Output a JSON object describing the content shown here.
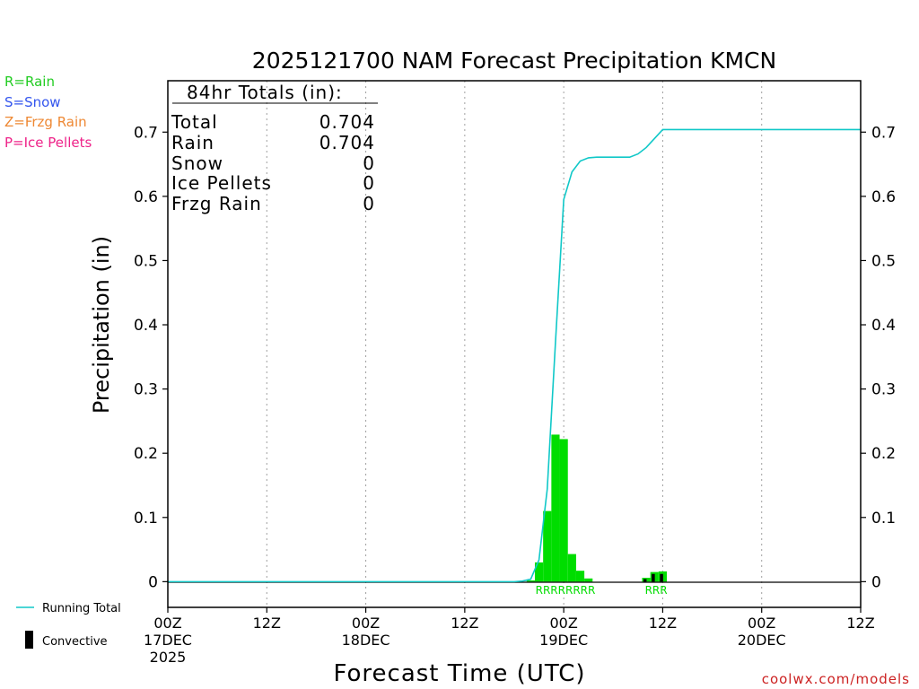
{
  "chart_data": {
    "type": "bar",
    "title": "2025121700 NAM Forecast Precipitation KMCN",
    "xlabel": "Forecast Time (UTC)",
    "ylabel": "Precipitation (in)",
    "ylim": [
      -0.04,
      0.78
    ],
    "xlim_hours": [
      0,
      84
    ],
    "y_ticks": [
      "0",
      "0.1",
      "0.2",
      "0.3",
      "0.4",
      "0.5",
      "0.6",
      "0.7"
    ],
    "y_tick_values": [
      0,
      0.1,
      0.2,
      0.3,
      0.4,
      0.5,
      0.6,
      0.7
    ],
    "x_ticks": [
      {
        "hour": 0,
        "label": "00Z",
        "sub": "17DEC",
        "sub2": "2025"
      },
      {
        "hour": 12,
        "label": "12Z",
        "sub": "",
        "sub2": ""
      },
      {
        "hour": 24,
        "label": "00Z",
        "sub": "18DEC",
        "sub2": ""
      },
      {
        "hour": 36,
        "label": "12Z",
        "sub": "",
        "sub2": ""
      },
      {
        "hour": 48,
        "label": "00Z",
        "sub": "19DEC",
        "sub2": ""
      },
      {
        "hour": 60,
        "label": "12Z",
        "sub": "",
        "sub2": ""
      },
      {
        "hour": 72,
        "label": "00Z",
        "sub": "20DEC",
        "sub2": ""
      },
      {
        "hour": 84,
        "label": "12Z",
        "sub": "",
        "sub2": ""
      }
    ],
    "grid": "vertical dotted",
    "bars": [
      {
        "hour": 44,
        "value": 0.002,
        "conv": 0
      },
      {
        "hour": 45,
        "value": 0.03,
        "conv": 0
      },
      {
        "hour": 46,
        "value": 0.11,
        "conv": 0
      },
      {
        "hour": 47,
        "value": 0.229,
        "conv": 0
      },
      {
        "hour": 48,
        "value": 0.222,
        "conv": 0
      },
      {
        "hour": 49,
        "value": 0.043,
        "conv": 0
      },
      {
        "hour": 50,
        "value": 0.017,
        "conv": 0
      },
      {
        "hour": 51,
        "value": 0.005,
        "conv": 0
      },
      {
        "hour": 58,
        "value": 0.006,
        "conv": 0.004
      },
      {
        "hour": 59,
        "value": 0.015,
        "conv": 0.012
      },
      {
        "hour": 60,
        "value": 0.016,
        "conv": 0.012
      }
    ],
    "running_total": {
      "hours": [
        0,
        42,
        43,
        44,
        45,
        46,
        47,
        48,
        49,
        50,
        51,
        52,
        56,
        57,
        58,
        59,
        60,
        84
      ],
      "values": [
        0,
        0,
        0.001,
        0.004,
        0.034,
        0.144,
        0.373,
        0.595,
        0.638,
        0.655,
        0.66,
        0.661,
        0.661,
        0.666,
        0.676,
        0.69,
        0.704,
        0.704
      ]
    },
    "rain_markers": [
      {
        "label": "RRRRRRRR",
        "hour": 48.2
      },
      {
        "label": "RRR",
        "hour": 59.2
      }
    ],
    "colors": {
      "rain": "#00dd00",
      "convective": "#000000",
      "running_total": "#10c8c8",
      "grid": "#a0a0a0"
    }
  },
  "totals_box": {
    "header": "84hr Totals (in):",
    "rows": [
      {
        "label": "Total",
        "value": "0.704"
      },
      {
        "label": "Rain",
        "value": "0.704"
      },
      {
        "label": "Snow",
        "value": "0"
      },
      {
        "label": "Ice Pellets",
        "value": "0"
      },
      {
        "label": "Frzg Rain",
        "value": "0"
      }
    ]
  },
  "type_legend": [
    {
      "text": "R=Rain",
      "color": "#22cc22"
    },
    {
      "text": "S=Snow",
      "color": "#3355ee"
    },
    {
      "text": "Z=Frzg Rain",
      "color": "#ee8833"
    },
    {
      "text": "P=Ice Pellets",
      "color": "#ee2288"
    }
  ],
  "line_legend": {
    "running_total": "Running Total",
    "convective": "Convective"
  },
  "footer": {
    "site": "coolwx.com/models"
  }
}
